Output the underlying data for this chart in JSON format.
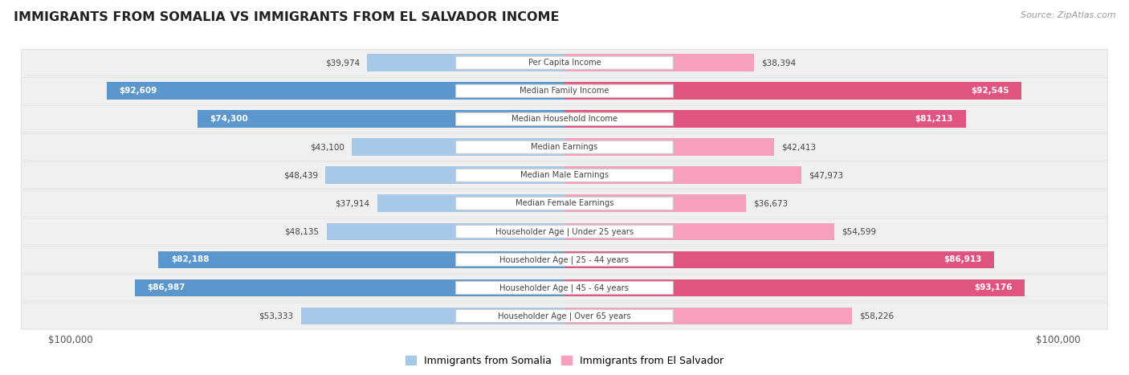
{
  "title": "IMMIGRANTS FROM SOMALIA VS IMMIGRANTS FROM EL SALVADOR INCOME",
  "source": "Source: ZipAtlas.com",
  "categories": [
    "Per Capita Income",
    "Median Family Income",
    "Median Household Income",
    "Median Earnings",
    "Median Male Earnings",
    "Median Female Earnings",
    "Householder Age | Under 25 years",
    "Householder Age | 25 - 44 years",
    "Householder Age | 45 - 64 years",
    "Householder Age | Over 65 years"
  ],
  "somalia_values": [
    39974,
    92609,
    74300,
    43100,
    48439,
    37914,
    48135,
    82188,
    86987,
    53333
  ],
  "elsalvador_values": [
    38394,
    92545,
    81213,
    42413,
    47973,
    36673,
    54599,
    86913,
    93176,
    58226
  ],
  "somalia_labels": [
    "$39,974",
    "$92,609",
    "$74,300",
    "$43,100",
    "$48,439",
    "$37,914",
    "$48,135",
    "$82,188",
    "$86,987",
    "$53,333"
  ],
  "elsalvador_labels": [
    "$38,394",
    "$92,545",
    "$81,213",
    "$42,413",
    "$47,973",
    "$36,673",
    "$54,599",
    "$86,913",
    "$93,176",
    "$58,226"
  ],
  "somalia_color_strong": "#5B96CC",
  "somalia_color_light": "#A8C8E8",
  "elsalvador_color_strong": "#E05580",
  "elsalvador_color_light": "#F5A0BC",
  "max_value": 100000,
  "legend_somalia": "Immigrants from Somalia",
  "legend_elsalvador": "Immigrants from El Salvador",
  "strong_threshold": 0.7
}
